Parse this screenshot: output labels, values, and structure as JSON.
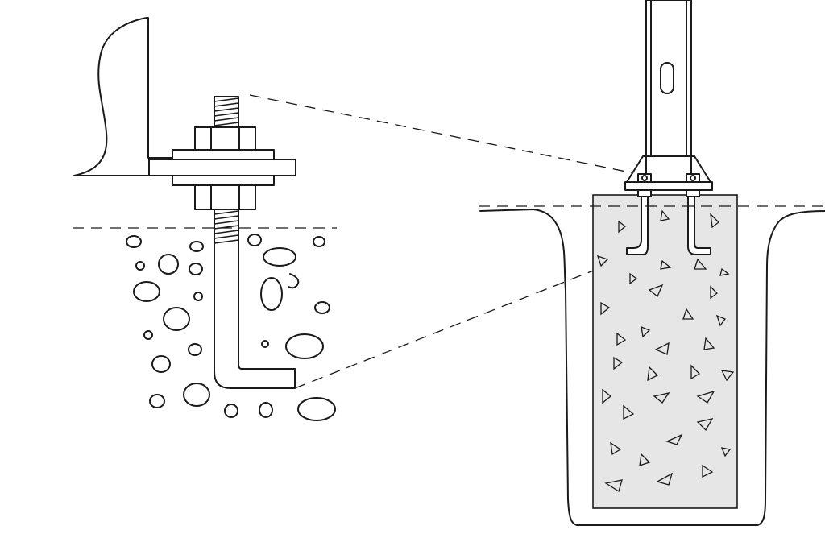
{
  "diagram": {
    "kind": "anchor-bolt-foundation-illustration",
    "colors": {
      "ink": "#1a1a1a",
      "background": "#ffffff",
      "concrete": "#e6e6e6"
    },
    "parts": [
      "detail-anchor-bolt",
      "detail-nut-upper",
      "detail-nut-lower",
      "detail-washer-plate",
      "detail-angle-bracket",
      "detail-gravel",
      "pole",
      "pole-slot",
      "base-plate",
      "concrete-footing",
      "soil-excavation",
      "ground-line"
    ]
  }
}
